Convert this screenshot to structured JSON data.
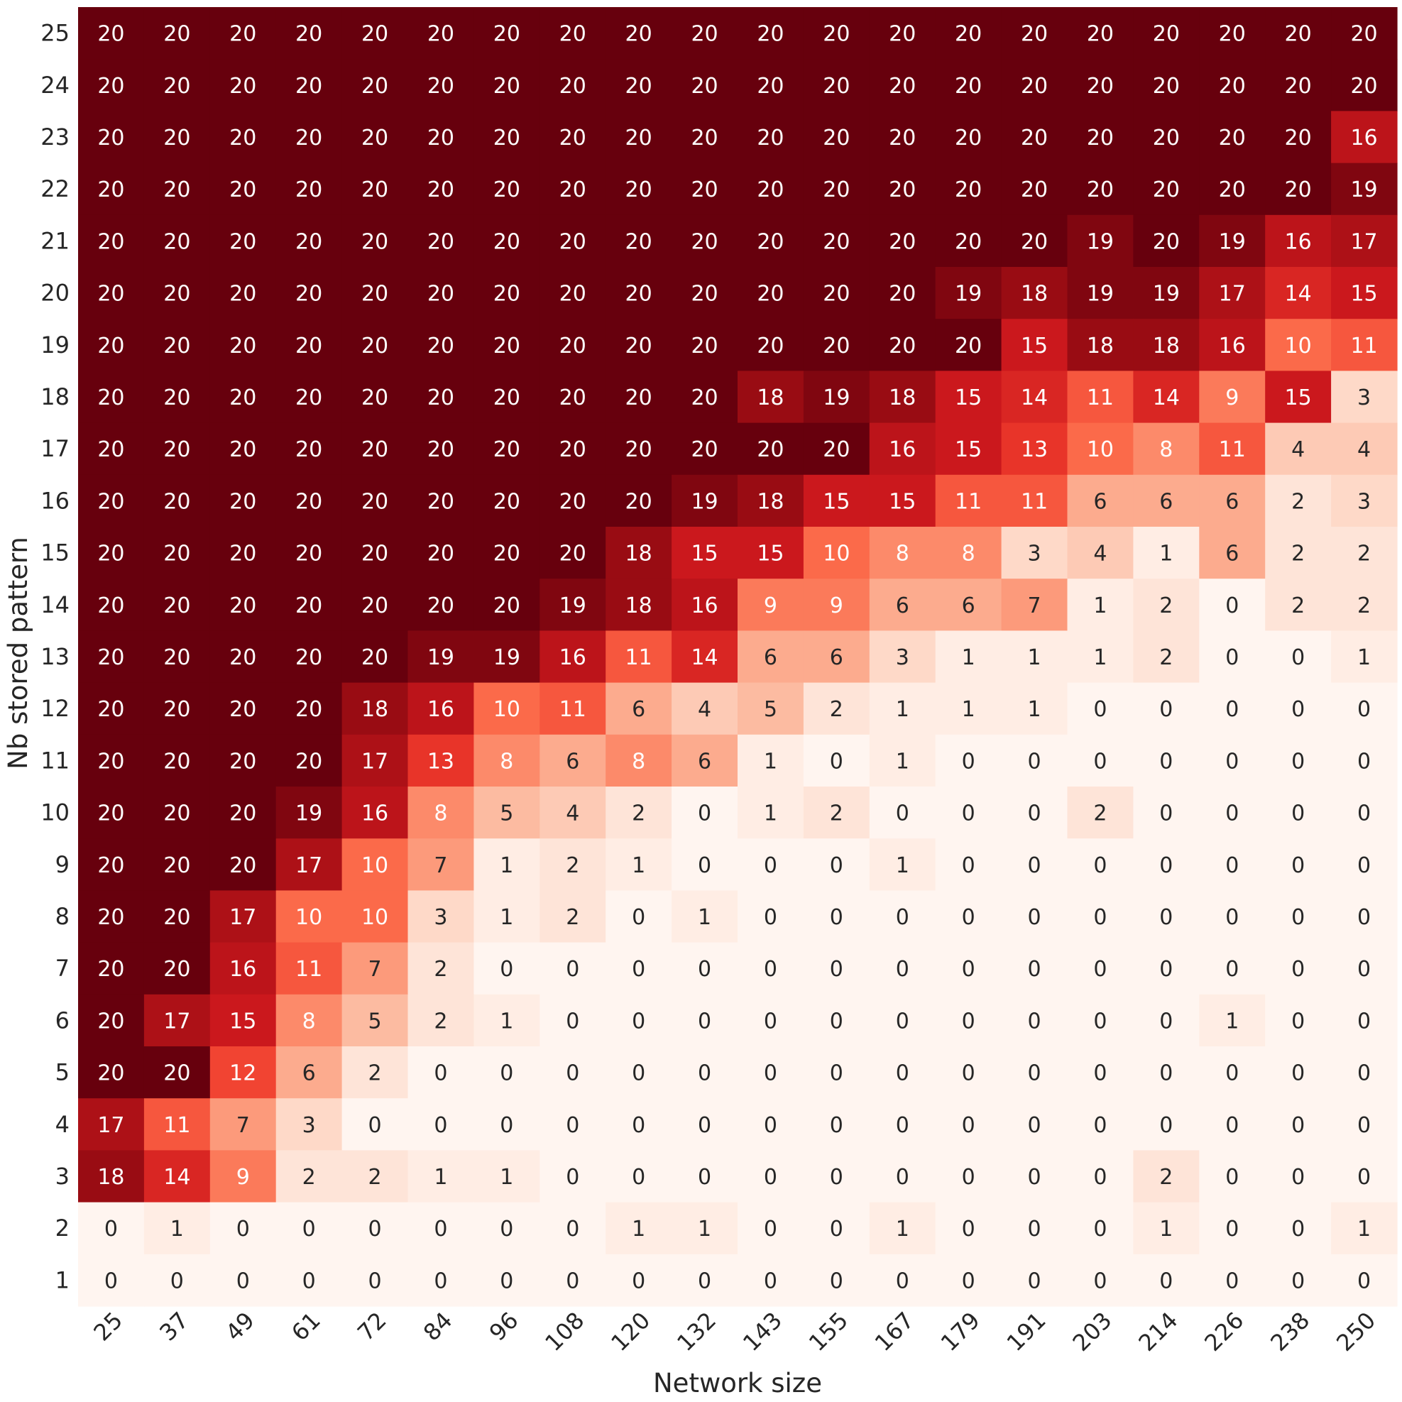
{
  "chart_data": {
    "type": "heatmap",
    "title": "",
    "xlabel": "Network size",
    "ylabel": "Nb stored pattern",
    "x": [
      "25",
      "37",
      "49",
      "61",
      "72",
      "84",
      "96",
      "108",
      "120",
      "132",
      "143",
      "155",
      "167",
      "179",
      "191",
      "203",
      "214",
      "226",
      "238",
      "250"
    ],
    "y": [
      "25",
      "24",
      "23",
      "22",
      "21",
      "20",
      "19",
      "18",
      "17",
      "16",
      "15",
      "14",
      "13",
      "12",
      "11",
      "10",
      "9",
      "8",
      "7",
      "6",
      "5",
      "4",
      "3",
      "2",
      "1"
    ],
    "values": [
      [
        20,
        20,
        20,
        20,
        20,
        20,
        20,
        20,
        20,
        20,
        20,
        20,
        20,
        20,
        20,
        20,
        20,
        20,
        20,
        20
      ],
      [
        20,
        20,
        20,
        20,
        20,
        20,
        20,
        20,
        20,
        20,
        20,
        20,
        20,
        20,
        20,
        20,
        20,
        20,
        20,
        20
      ],
      [
        20,
        20,
        20,
        20,
        20,
        20,
        20,
        20,
        20,
        20,
        20,
        20,
        20,
        20,
        20,
        20,
        20,
        20,
        20,
        16
      ],
      [
        20,
        20,
        20,
        20,
        20,
        20,
        20,
        20,
        20,
        20,
        20,
        20,
        20,
        20,
        20,
        20,
        20,
        20,
        20,
        19
      ],
      [
        20,
        20,
        20,
        20,
        20,
        20,
        20,
        20,
        20,
        20,
        20,
        20,
        20,
        20,
        20,
        19,
        20,
        19,
        16,
        17
      ],
      [
        20,
        20,
        20,
        20,
        20,
        20,
        20,
        20,
        20,
        20,
        20,
        20,
        20,
        19,
        18,
        19,
        19,
        17,
        14,
        15
      ],
      [
        20,
        20,
        20,
        20,
        20,
        20,
        20,
        20,
        20,
        20,
        20,
        20,
        20,
        20,
        15,
        18,
        18,
        16,
        10,
        11
      ],
      [
        20,
        20,
        20,
        20,
        20,
        20,
        20,
        20,
        20,
        20,
        18,
        19,
        18,
        15,
        14,
        11,
        14,
        9,
        15,
        3
      ],
      [
        20,
        20,
        20,
        20,
        20,
        20,
        20,
        20,
        20,
        20,
        20,
        20,
        16,
        15,
        13,
        10,
        8,
        11,
        4,
        4
      ],
      [
        20,
        20,
        20,
        20,
        20,
        20,
        20,
        20,
        20,
        19,
        18,
        15,
        15,
        11,
        11,
        6,
        6,
        6,
        2,
        3
      ],
      [
        20,
        20,
        20,
        20,
        20,
        20,
        20,
        20,
        18,
        15,
        15,
        10,
        8,
        8,
        3,
        4,
        1,
        6,
        2,
        2
      ],
      [
        20,
        20,
        20,
        20,
        20,
        20,
        20,
        19,
        18,
        16,
        9,
        9,
        6,
        6,
        7,
        1,
        2,
        0,
        2,
        2
      ],
      [
        20,
        20,
        20,
        20,
        20,
        19,
        19,
        16,
        11,
        14,
        6,
        6,
        3,
        1,
        1,
        1,
        2,
        0,
        0,
        1
      ],
      [
        20,
        20,
        20,
        20,
        18,
        16,
        10,
        11,
        6,
        4,
        5,
        2,
        1,
        1,
        1,
        0,
        0,
        0,
        0,
        0
      ],
      [
        20,
        20,
        20,
        20,
        17,
        13,
        8,
        6,
        8,
        6,
        1,
        0,
        1,
        0,
        0,
        0,
        0,
        0,
        0,
        0
      ],
      [
        20,
        20,
        20,
        19,
        16,
        8,
        5,
        4,
        2,
        0,
        1,
        2,
        0,
        0,
        0,
        2,
        0,
        0,
        0,
        0
      ],
      [
        20,
        20,
        20,
        17,
        10,
        7,
        1,
        2,
        1,
        0,
        0,
        0,
        1,
        0,
        0,
        0,
        0,
        0,
        0,
        0
      ],
      [
        20,
        20,
        17,
        10,
        10,
        3,
        1,
        2,
        0,
        1,
        0,
        0,
        0,
        0,
        0,
        0,
        0,
        0,
        0,
        0
      ],
      [
        20,
        20,
        16,
        11,
        7,
        2,
        0,
        0,
        0,
        0,
        0,
        0,
        0,
        0,
        0,
        0,
        0,
        0,
        0,
        0
      ],
      [
        20,
        17,
        15,
        8,
        5,
        2,
        1,
        0,
        0,
        0,
        0,
        0,
        0,
        0,
        0,
        0,
        0,
        1,
        0,
        0
      ],
      [
        20,
        20,
        12,
        6,
        2,
        0,
        0,
        0,
        0,
        0,
        0,
        0,
        0,
        0,
        0,
        0,
        0,
        0,
        0,
        0
      ],
      [
        17,
        11,
        7,
        3,
        0,
        0,
        0,
        0,
        0,
        0,
        0,
        0,
        0,
        0,
        0,
        0,
        0,
        0,
        0,
        0
      ],
      [
        18,
        14,
        9,
        2,
        2,
        1,
        1,
        0,
        0,
        0,
        0,
        0,
        0,
        0,
        0,
        0,
        2,
        0,
        0,
        0
      ],
      [
        0,
        1,
        0,
        0,
        0,
        0,
        0,
        0,
        1,
        1,
        0,
        0,
        1,
        0,
        0,
        0,
        1,
        0,
        0,
        1
      ],
      [
        0,
        0,
        0,
        0,
        0,
        0,
        0,
        0,
        0,
        0,
        0,
        0,
        0,
        0,
        0,
        0,
        0,
        0,
        0,
        0
      ]
    ],
    "vmin": 0,
    "vmax": 20,
    "colormap": "Reds",
    "colorbar": false,
    "grid": false,
    "annotated": true
  }
}
